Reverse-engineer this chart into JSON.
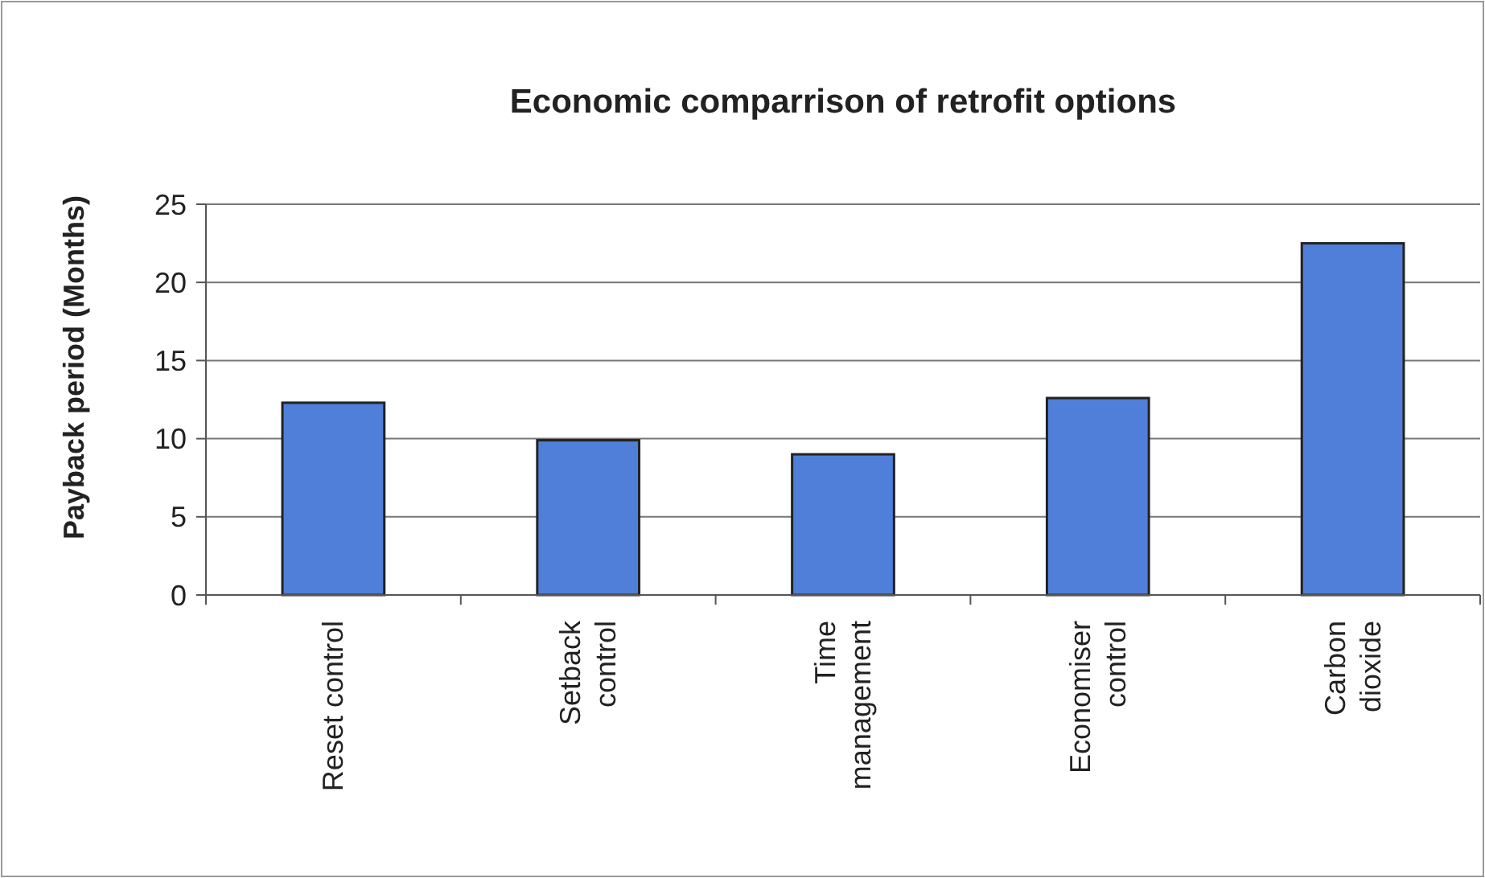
{
  "chart_data": {
    "type": "bar",
    "title": "Economic comparrison of retrofit options",
    "ylabel": "Payback period (Months)",
    "categories": [
      "Reset control",
      "Setback control",
      "Time management",
      "Economiser control",
      "Carbon dioxide"
    ],
    "values": [
      12.3,
      9.9,
      9.0,
      12.6,
      22.5
    ],
    "color": "#4f7fd8",
    "ylim": [
      0,
      25
    ],
    "yticks": [
      0,
      5,
      10,
      15,
      20,
      25
    ],
    "grid": "y"
  }
}
